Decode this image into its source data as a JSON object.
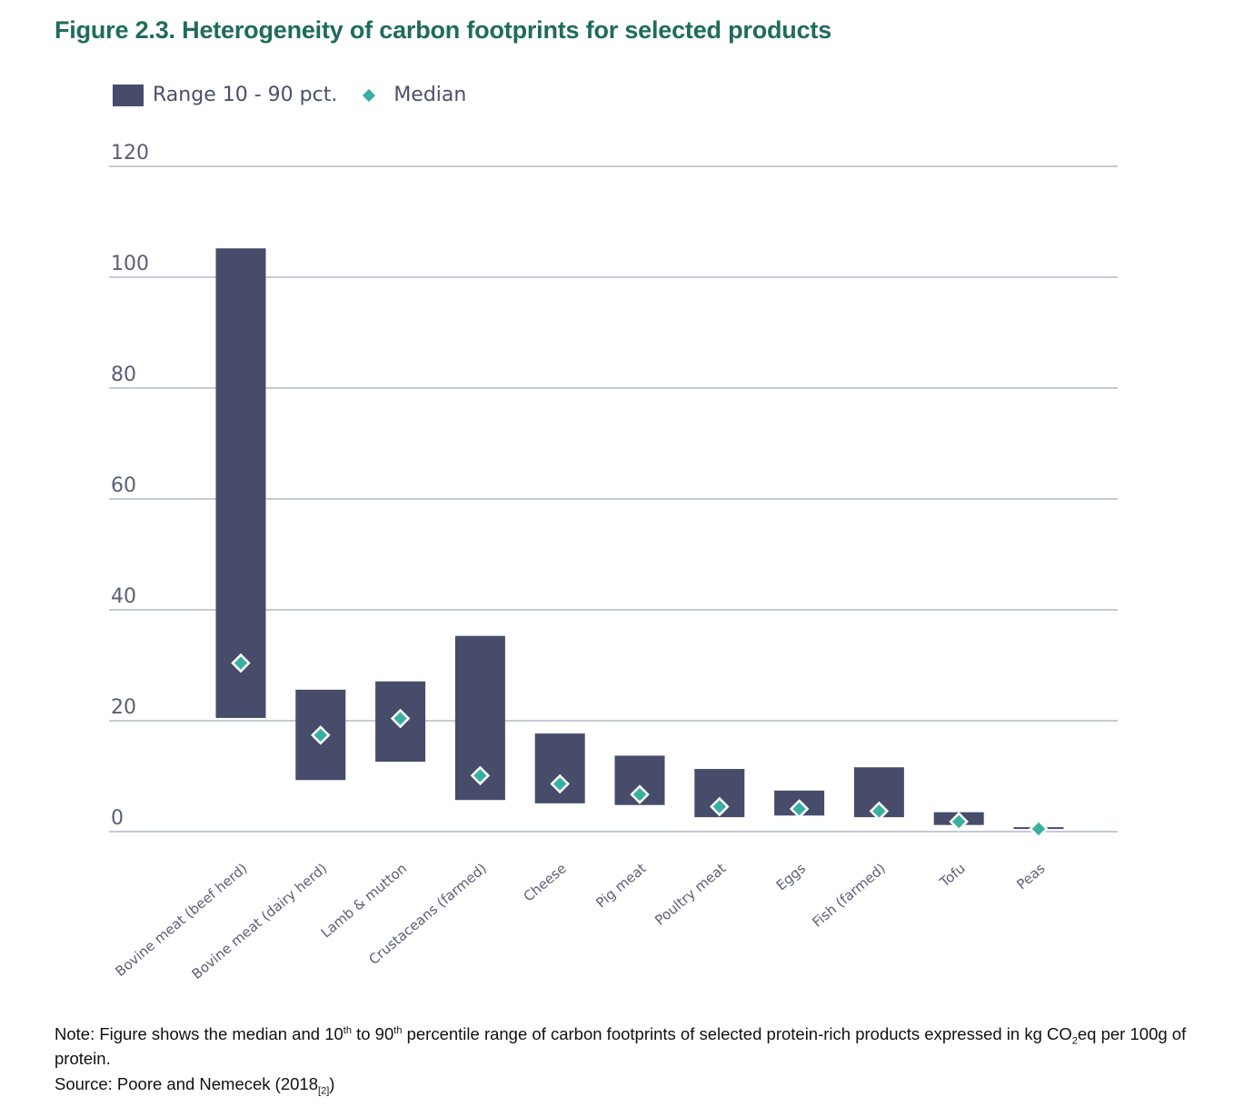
{
  "figure": {
    "title": "Figure 2.3. Heterogeneity of carbon footprints for selected products"
  },
  "legend": {
    "range_label": "Range 10 - 90 pct.",
    "median_label": "Median"
  },
  "colors": {
    "title": "#1f6b5e",
    "range_bar": "#474c6b",
    "median_marker": "#3aafa0",
    "gridline": "#c5cad6"
  },
  "chart_data": {
    "type": "bar",
    "title": "Figure 2.3. Heterogeneity of carbon footprints for selected products",
    "xlabel": "",
    "ylabel": "",
    "ylim": [
      0,
      120
    ],
    "yticks": [
      0,
      20,
      40,
      60,
      80,
      100,
      120
    ],
    "grid": true,
    "legend_position": "top-left",
    "categories": [
      "Bovine meat (beef herd)",
      "Bovine meat (dairy herd)",
      "Lamb & mutton",
      "Crustaceans (farmed)",
      "Cheese",
      "Pig meat",
      "Poultry meat",
      "Eggs",
      "Fish (farmed)",
      "Tofu",
      "Peas"
    ],
    "series": [
      {
        "name": "Range 10 - 90 pct.",
        "kind": "floating-bar",
        "low": [
          20.5,
          9.3,
          12.6,
          5.7,
          5.1,
          4.8,
          2.6,
          2.9,
          2.6,
          1.2,
          0.5
        ],
        "high": [
          105.2,
          25.6,
          27.1,
          35.3,
          17.7,
          13.7,
          11.3,
          7.4,
          11.6,
          3.5,
          0.8
        ]
      },
      {
        "name": "Median",
        "kind": "marker",
        "values": [
          30.4,
          17.4,
          20.4,
          10.1,
          8.6,
          6.7,
          4.5,
          4.1,
          3.7,
          1.8,
          0.5
        ]
      }
    ]
  },
  "note": {
    "text_a": "Note: Figure shows the median and 10",
    "sup_a": "th",
    "text_b": " to 90",
    "sup_b": "th",
    "text_c": " percentile range of carbon footprints of selected protein-rich products expressed in kg CO",
    "sub_c": "2",
    "text_d": "eq per 100g of protein."
  },
  "source": {
    "text": "Source: Poore and Nemecek (2018",
    "ref": "[2]",
    "close": ")"
  }
}
